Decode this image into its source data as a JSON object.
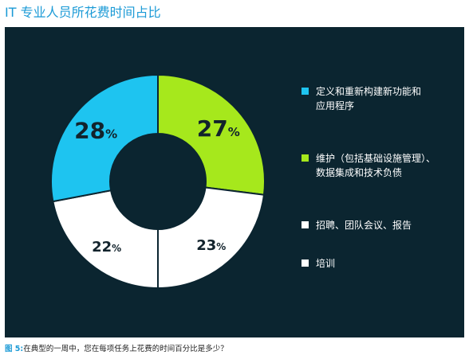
{
  "title": "IT 专业人员所花费时间占比",
  "caption": {
    "figure_label": "图 5:",
    "text": "在典型的一周中，您在每项任务上花费的时间百分比是多少？"
  },
  "chart_data": {
    "type": "pie",
    "donut": true,
    "title": "IT 专业人员所花费时间占比",
    "percent_suffix": "%",
    "legend_position": "right",
    "slices": [
      {
        "label": "定义和重新构建新功能和应用程序",
        "value": 28,
        "color": "#1ec4f0",
        "text_color": "#12232c"
      },
      {
        "label": "维护（包括基础设施管理）、数据集成和技术负债",
        "value": 27,
        "color": "#a6e81c",
        "text_color": "#12232c"
      },
      {
        "label": "招聘、团队会议、报告",
        "value": 23,
        "color": "#ffffff",
        "text_color": "#12232c"
      },
      {
        "label": "培训",
        "value": 22,
        "color": "#ffffff",
        "text_color": "#12232c"
      }
    ],
    "legend": [
      {
        "lines": [
          "定义和重新构建新功能和",
          "应用程序"
        ],
        "color": "#1ec4f0"
      },
      {
        "lines": [
          "维护（包括基础设施管理）、",
          "数据集成和技术负债"
        ],
        "color": "#a6e81c"
      },
      {
        "lines": [
          "招聘、团队会议、报告"
        ],
        "color": "#ffffff"
      },
      {
        "lines": [
          "培训"
        ],
        "color": "#ffffff"
      }
    ],
    "background": "#0b2530",
    "divider_color": "#0b2530"
  }
}
